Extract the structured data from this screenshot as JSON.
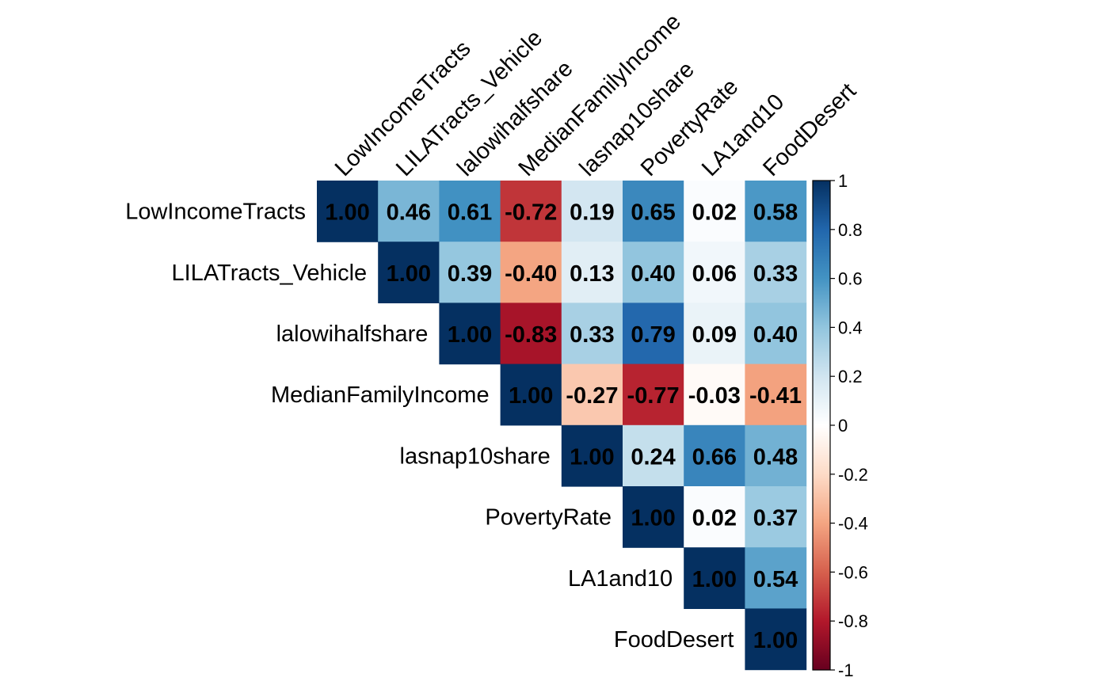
{
  "chart_data": {
    "type": "heatmap",
    "variables": [
      "LowIncomeTracts",
      "LILATracts_Vehicle",
      "lalowihalfshare",
      "MedianFamilyIncome",
      "lasnap10share",
      "PovertyRate",
      "LA1and10",
      "FoodDesert"
    ],
    "matrix": [
      [
        1.0,
        0.46,
        0.61,
        -0.72,
        0.19,
        0.65,
        0.02,
        0.58
      ],
      [
        null,
        1.0,
        0.39,
        -0.4,
        0.13,
        0.4,
        0.06,
        0.33
      ],
      [
        null,
        null,
        1.0,
        -0.83,
        0.33,
        0.79,
        0.09,
        0.4
      ],
      [
        null,
        null,
        null,
        1.0,
        -0.27,
        -0.77,
        -0.03,
        -0.41
      ],
      [
        null,
        null,
        null,
        null,
        1.0,
        0.24,
        0.66,
        0.48
      ],
      [
        null,
        null,
        null,
        null,
        null,
        1.0,
        0.02,
        0.37
      ],
      [
        null,
        null,
        null,
        null,
        null,
        null,
        1.0,
        0.54
      ],
      [
        null,
        null,
        null,
        null,
        null,
        null,
        null,
        1.0
      ]
    ],
    "display_labels": [
      [
        "1.00",
        "0.46",
        "0.61",
        "-0.72",
        "0.19",
        "0.65",
        "0.02",
        "0.58"
      ],
      [
        null,
        "1.00",
        "0.39",
        "-0.40",
        "0.13",
        "0.40",
        "0.06",
        "0.33"
      ],
      [
        null,
        null,
        "1.00",
        "-0.83",
        "0.33",
        "0.79",
        "0.09",
        "0.40"
      ],
      [
        null,
        null,
        null,
        "1.00",
        "-0.27",
        "-0.77",
        "-0.03",
        "-0.41"
      ],
      [
        null,
        null,
        null,
        null,
        "1.00",
        "0.24",
        "0.66",
        "0.48"
      ],
      [
        null,
        null,
        null,
        null,
        null,
        "1.00",
        "0.02",
        "0.37"
      ],
      [
        null,
        null,
        null,
        null,
        null,
        null,
        "1.00",
        "0.54"
      ],
      [
        null,
        null,
        null,
        null,
        null,
        null,
        null,
        "1.00"
      ]
    ],
    "triangle": "upper",
    "colorbar": {
      "range": [
        -1,
        1
      ],
      "ticks": [
        1,
        0.8,
        0.6,
        0.4,
        0.2,
        0,
        -0.2,
        -0.4,
        -0.6,
        -0.8,
        -1
      ],
      "tick_labels": [
        "1",
        "0.8",
        "0.6",
        "0.4",
        "0.2",
        "0",
        "-0.2",
        "-0.4",
        "-0.6",
        "-0.8",
        "-1"
      ],
      "colors": [
        "#67001F",
        "#B2182B",
        "#D6604D",
        "#F4A582",
        "#FDDBC7",
        "#FFFFFF",
        "#D1E5F0",
        "#92C5DE",
        "#4393C3",
        "#2166AC",
        "#053061"
      ]
    },
    "title": "",
    "xlabel": "",
    "ylabel": ""
  }
}
